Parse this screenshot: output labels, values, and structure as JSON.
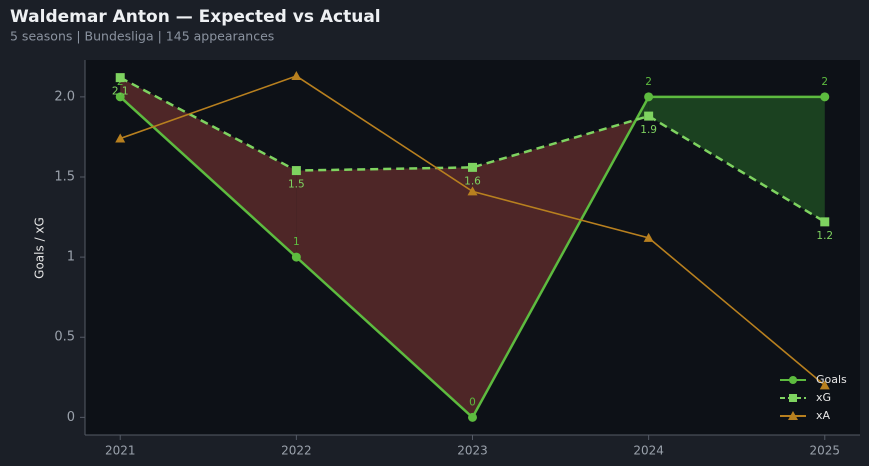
{
  "chart_data": {
    "type": "line",
    "title": "Waldemar Anton — Expected vs Actual",
    "subtitle": "5 seasons | Bundesliga | 145 appearances",
    "y_label": "Goals / xG",
    "categories": [
      "2021",
      "2022",
      "2023",
      "2024",
      "2025"
    ],
    "series": [
      {
        "name": "Goals",
        "color": "#5dbb3f",
        "marker": "circle",
        "dash": false,
        "labels": true,
        "values": [
          2,
          1,
          0,
          2,
          2
        ]
      },
      {
        "name": "xG",
        "color": "#7ed360",
        "marker": "square",
        "dash": true,
        "labels": true,
        "values": [
          2.12,
          1.54,
          1.56,
          1.88,
          1.22
        ],
        "value_labels": [
          "2.1",
          "1.5",
          "1.6",
          "1.9",
          "1.2"
        ]
      },
      {
        "name": "xA",
        "color": "#b8801f",
        "marker": "triangle",
        "dash": false,
        "labels": false,
        "values": [
          1.74,
          2.13,
          1.41,
          1.12,
          0.2
        ]
      }
    ],
    "fill_under_color": "#5a2a2a",
    "fill_over_color": "#1f4a22",
    "ylim": [
      -0.11,
      2.23
    ],
    "yticks": [
      0.0,
      0.5,
      1.0,
      1.5,
      {
        "value": 2,
        "label": "2.0"
      }
    ],
    "yticks_fix": null,
    "legend": "lower-right",
    "grid": false
  }
}
